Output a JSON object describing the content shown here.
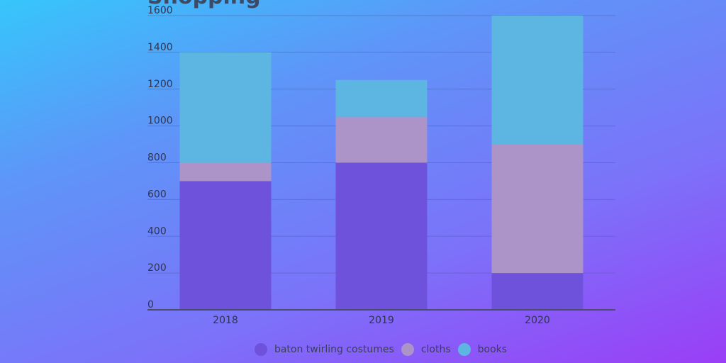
{
  "chart_data": {
    "type": "bar",
    "stacked": true,
    "title": "Shopping",
    "categories": [
      "2018",
      "2019",
      "2020"
    ],
    "series": [
      {
        "name": "baton twirling costumes",
        "color": "#6f52dc",
        "values": [
          700,
          800,
          200
        ]
      },
      {
        "name": "cloths",
        "color": "#ac93c8",
        "values": [
          100,
          250,
          700
        ]
      },
      {
        "name": "books",
        "color": "#5db5e2",
        "values": [
          600,
          200,
          700
        ]
      }
    ],
    "ylim": [
      0,
      1600
    ],
    "yticks": [
      "0",
      "200",
      "400",
      "600",
      "800",
      "1000",
      "1200",
      "1400",
      "1600"
    ],
    "grid": true,
    "legend": "bottom-center"
  }
}
